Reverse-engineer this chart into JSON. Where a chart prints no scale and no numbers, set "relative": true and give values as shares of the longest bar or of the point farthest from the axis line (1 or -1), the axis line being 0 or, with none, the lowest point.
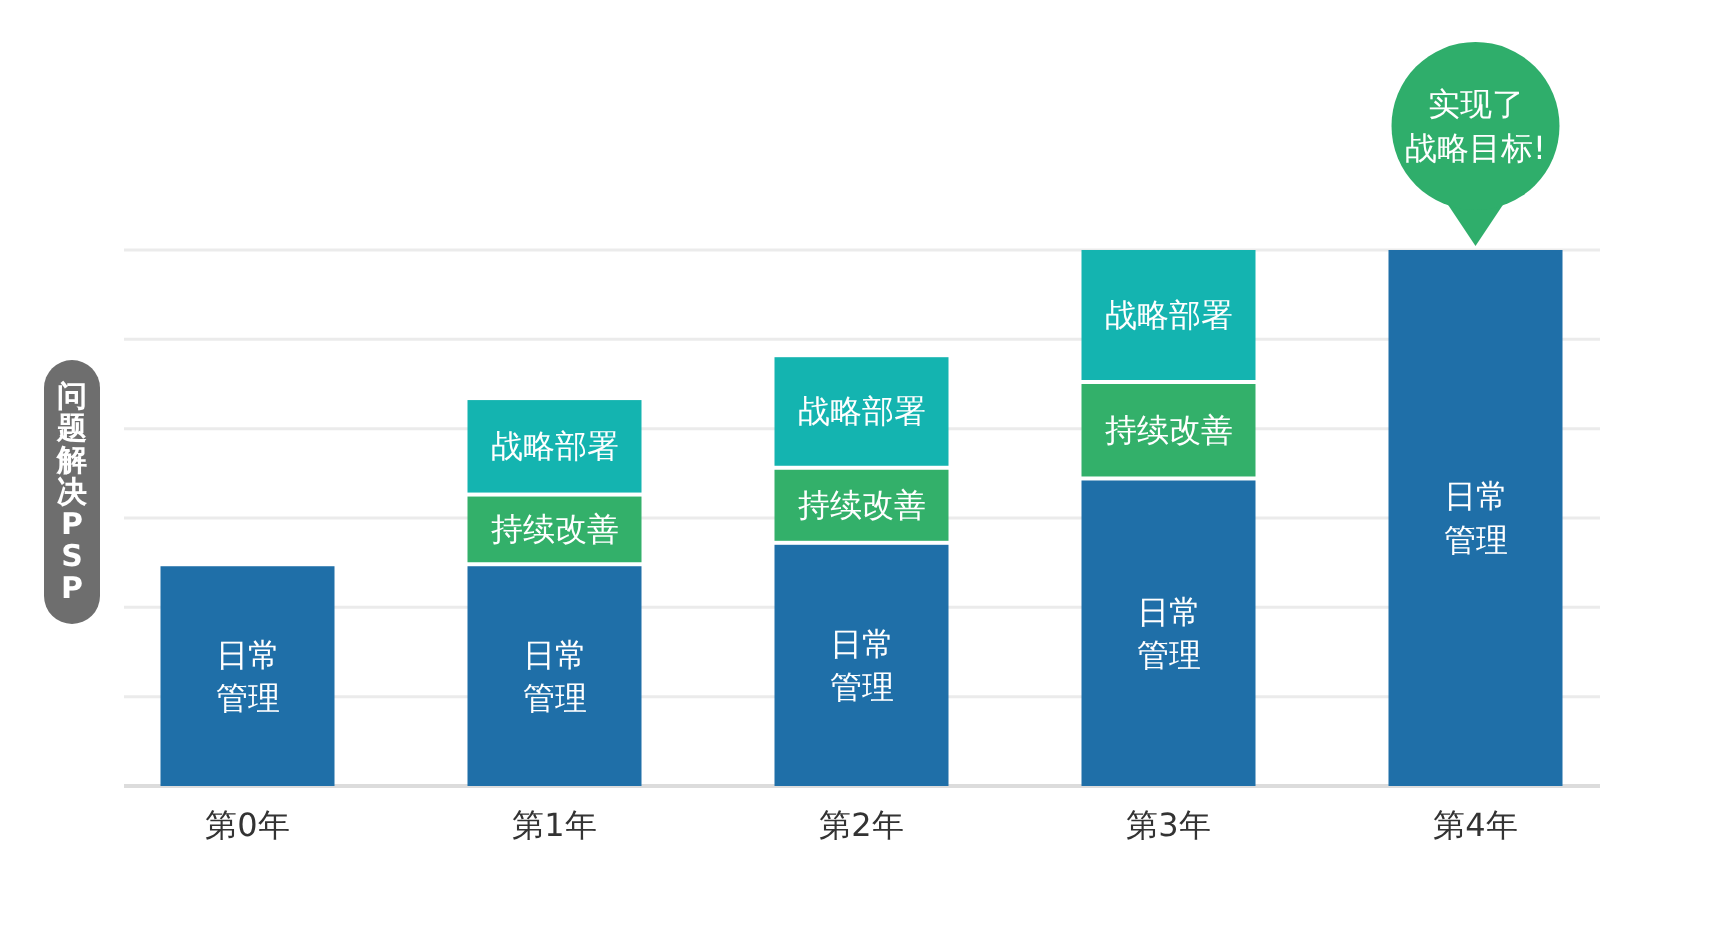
{
  "chart_data": {
    "type": "bar",
    "stacked": true,
    "relative": true,
    "categories": [
      "第0年",
      "第1年",
      "第2年",
      "第3年",
      "第4年"
    ],
    "series": [
      {
        "name": "日常管理",
        "color": "#1f6fa8",
        "values": [
          0.41,
          0.41,
          0.45,
          0.57,
          1.0
        ]
      },
      {
        "name": "持续改善",
        "color": "#33b06a",
        "values": [
          null,
          0.13,
          0.14,
          0.18,
          null
        ]
      },
      {
        "name": "战略部署",
        "color": "#14b4b0",
        "values": [
          null,
          0.18,
          0.21,
          0.25,
          null
        ]
      }
    ],
    "ylabel": "问题解决PSP",
    "annotations": [
      {
        "text": "实现了战略目标!",
        "x": "第4年",
        "y": 1.0
      }
    ],
    "grid": "y",
    "legend": false
  }
}
